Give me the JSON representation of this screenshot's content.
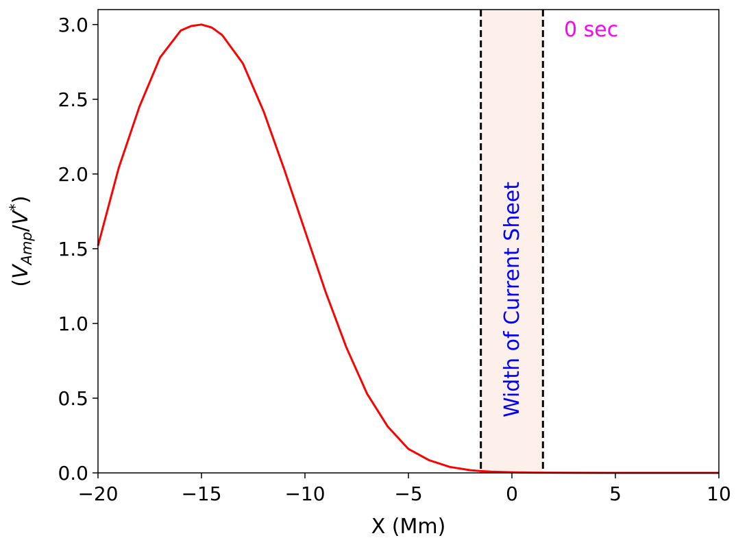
{
  "chart_data": {
    "type": "line",
    "title": "",
    "xlabel": "X (Mm)",
    "ylabel": {
      "open": "(",
      "var": "V",
      "sub": "Amp",
      "slash": "/",
      "var2": "V",
      "sup": "*",
      "close": ")"
    },
    "xlim": [
      -20,
      10
    ],
    "ylim": [
      0,
      3.1
    ],
    "xticks": [
      -20,
      -15,
      -10,
      -5,
      0,
      5,
      10
    ],
    "xtick_labels": [
      "−20",
      "−15",
      "−10",
      "−5",
      "0",
      "5",
      "10"
    ],
    "yticks": [
      0.0,
      0.5,
      1.0,
      1.5,
      2.0,
      2.5,
      3.0
    ],
    "ytick_labels": [
      "0.0",
      "0.5",
      "1.0",
      "1.5",
      "2.0",
      "2.5",
      "3.0"
    ],
    "grid": false,
    "series": [
      {
        "name": "V_Amp",
        "color": "#ff0000",
        "x": [
          -20,
          -19,
          -18,
          -17,
          -16,
          -15.5,
          -15,
          -14.5,
          -14,
          -13,
          -12,
          -11,
          -10,
          -9,
          -8,
          -7,
          -6,
          -5,
          -4,
          -3,
          -2,
          -1.5,
          -1,
          0,
          1,
          2,
          3,
          5,
          7,
          10
        ],
        "y": [
          1.52,
          2.04,
          2.45,
          2.78,
          2.96,
          2.99,
          3.0,
          2.98,
          2.93,
          2.74,
          2.42,
          2.03,
          1.62,
          1.21,
          0.84,
          0.53,
          0.31,
          0.16,
          0.085,
          0.04,
          0.018,
          0.012,
          0.008,
          0.004,
          0.002,
          0.001,
          0.0005,
          0.0002,
          0.0001,
          0.0
        ]
      }
    ],
    "current_sheet": {
      "x_left": -1.5,
      "x_right": 1.5,
      "fill_color": "#fdf0ea",
      "line_color": "#000000",
      "label": "Width of Current Sheet",
      "label_color": "#0000ff"
    },
    "time_annotation": {
      "text": "0 sec",
      "color": "#ff00ff"
    }
  }
}
